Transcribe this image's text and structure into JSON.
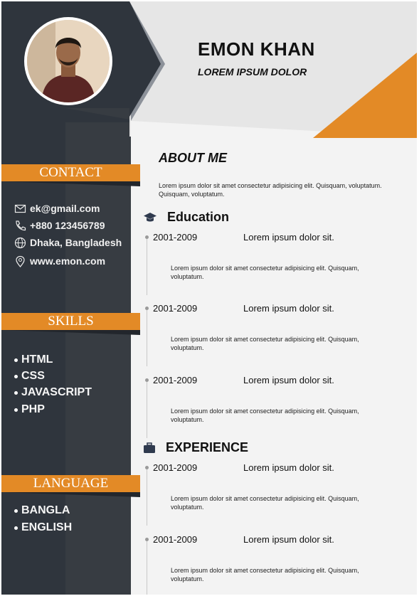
{
  "header": {
    "name": "EMON KHAN",
    "subtitle": "LOREM IPSUM DOLOR"
  },
  "colors": {
    "sidebar": "#2f353d",
    "accent": "#e38a26",
    "background": "#f3f3f3"
  },
  "contact": {
    "title": "CONTACT",
    "items": [
      {
        "icon": "email-icon",
        "text": "ek@gmail.com"
      },
      {
        "icon": "phone-icon",
        "text": "+880 123456789"
      },
      {
        "icon": "globe-icon",
        "text": "Dhaka, Bangladesh"
      },
      {
        "icon": "location-pin-icon",
        "text": "www.emon.com"
      }
    ]
  },
  "skills": {
    "title": "SKILLS",
    "items": [
      "HTML",
      "CSS",
      "JAVASCRIPT",
      "PHP"
    ]
  },
  "language": {
    "title": "LANGUAGE",
    "items": [
      "BANGLA",
      "ENGLISH"
    ]
  },
  "about": {
    "title": "ABOUT ME",
    "text": "Lorem ipsum dolor sit amet consectetur adipisicing elit. Quisquam, voluptatum. Quisquam, voluptatum."
  },
  "education": {
    "title": "Education",
    "icon": "graduation-cap-icon",
    "entries": [
      {
        "years": "2001-2009",
        "title": "Lorem ipsum dolor sit.",
        "desc": "Lorem ipsum dolor sit amet consectetur adipisicing elit. Quisquam, voluptatum."
      },
      {
        "years": "2001-2009",
        "title": "Lorem ipsum dolor sit.",
        "desc": "Lorem ipsum dolor sit amet consectetur adipisicing elit. Quisquam, voluptatum."
      },
      {
        "years": "2001-2009",
        "title": "Lorem ipsum dolor sit.",
        "desc": "Lorem ipsum dolor sit amet consectetur adipisicing elit. Quisquam, voluptatum."
      }
    ]
  },
  "experience": {
    "title": "EXPERIENCE",
    "icon": "briefcase-icon",
    "entries": [
      {
        "years": "2001-2009",
        "title": "Lorem ipsum dolor sit.",
        "desc": "Lorem ipsum dolor sit amet consectetur adipisicing elit. Quisquam, voluptatum."
      },
      {
        "years": "2001-2009",
        "title": "Lorem ipsum dolor sit.",
        "desc": "Lorem ipsum dolor sit amet consectetur adipisicing elit. Quisquam, voluptatum."
      }
    ]
  }
}
